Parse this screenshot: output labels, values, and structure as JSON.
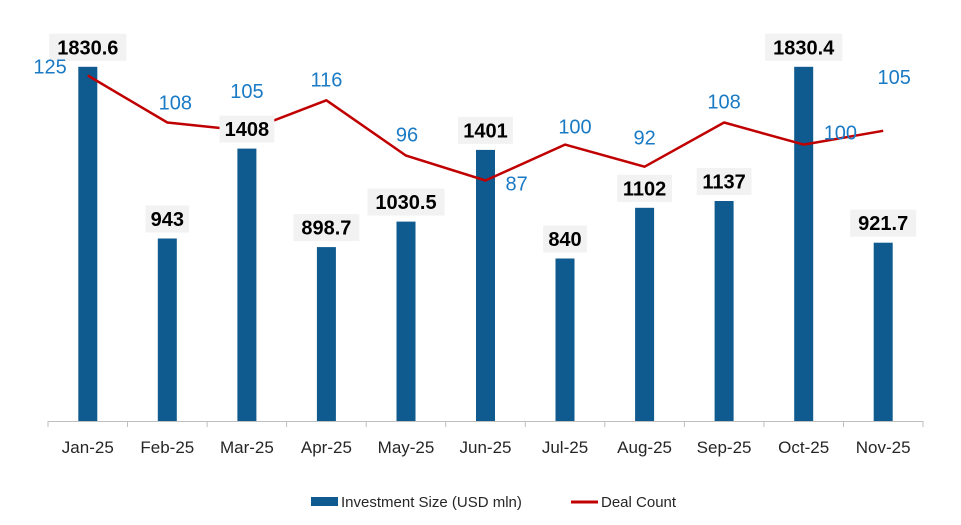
{
  "chart_data": {
    "type": "bar",
    "title": "",
    "xlabel": "",
    "ylabel": "",
    "categories": [
      "Jan-25",
      "Feb-25",
      "Mar-25",
      "Apr-25",
      "May-25",
      "Jun-25",
      "Jul-25",
      "Aug-25",
      "Sep-25",
      "Oct-25",
      "Nov-25"
    ],
    "series": [
      {
        "name": "Investment Size (USD mln)",
        "type": "bar",
        "axis": "primary",
        "color": "#0f5a8e",
        "values": [
          1830.6,
          943,
          1408,
          898.7,
          1030.5,
          1401,
          840,
          1102,
          1137,
          1830.4,
          921.7
        ],
        "labels": [
          "1830.6",
          "943",
          "1408",
          "898.7",
          "1030.5",
          "1401",
          "840",
          "1102",
          "1137",
          "1830.4",
          "921.7"
        ],
        "label_color": "#000000",
        "label_background": "#f2f2f2"
      },
      {
        "name": "Deal Count",
        "type": "line",
        "axis": "secondary",
        "color": "#c00000",
        "values": [
          125,
          108,
          105,
          116,
          96,
          87,
          100,
          92,
          108,
          100,
          105
        ],
        "labels": [
          "125",
          "108",
          "105",
          "116",
          "96",
          "87",
          "100",
          "92",
          "108",
          "100",
          "105"
        ],
        "label_color": "#1a7ac4",
        "label_placement": [
          "left",
          "above",
          "above",
          "above",
          "above",
          "right",
          "above",
          "above",
          "above",
          "right",
          "above"
        ]
      }
    ],
    "ylim": [
      0,
      2000
    ],
    "y2lim": [
      0,
      140
    ],
    "y_axis_visible": false,
    "y2_axis_visible": false,
    "grid": false,
    "legend": {
      "position": "bottom",
      "entries": [
        "Investment Size (USD mln)",
        "Deal Count"
      ]
    }
  }
}
